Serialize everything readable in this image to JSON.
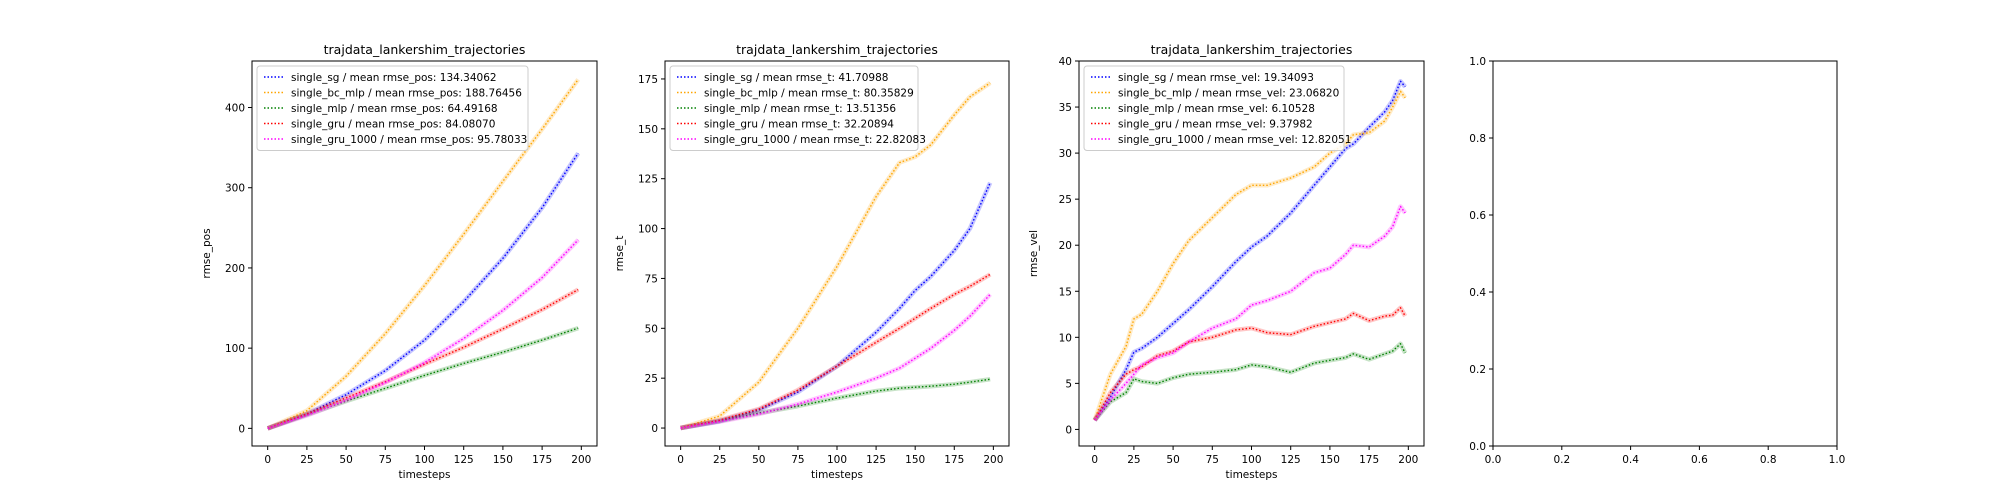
{
  "figure": {
    "panels": [
      {
        "title": "trajdata_lankershim_trajectories",
        "xlabel": "timesteps",
        "ylabel": "rmse_pos",
        "xlim": [
          -10,
          210
        ],
        "ylim": [
          -22,
          458
        ],
        "xticks": [
          0,
          25,
          50,
          75,
          100,
          125,
          150,
          175,
          200
        ],
        "yticks": [
          0,
          100,
          200,
          300,
          400
        ]
      },
      {
        "title": "trajdata_lankershim_trajectories",
        "xlabel": "timesteps",
        "ylabel": "rmse_t",
        "xlim": [
          -10,
          210
        ],
        "ylim": [
          -9,
          184
        ],
        "xticks": [
          0,
          25,
          50,
          75,
          100,
          125,
          150,
          175,
          200
        ],
        "yticks": [
          0,
          25,
          50,
          75,
          100,
          125,
          150,
          175
        ]
      },
      {
        "title": "trajdata_lankershim_trajectories",
        "xlabel": "timesteps",
        "ylabel": "rmse_vel",
        "xlim": [
          -10,
          210
        ],
        "ylim": [
          -1.8,
          40
        ],
        "xticks": [
          0,
          25,
          50,
          75,
          100,
          125,
          150,
          175,
          200
        ],
        "yticks": [
          0,
          5,
          10,
          15,
          20,
          25,
          30,
          35,
          40
        ]
      },
      {
        "title": "",
        "xlabel": "",
        "ylabel": "",
        "xlim": [
          0,
          1
        ],
        "ylim": [
          0,
          1
        ],
        "xticks": [
          "0.0",
          "0.2",
          "0.4",
          "0.6",
          "0.8",
          "1.0"
        ],
        "yticks": [
          "0.0",
          "0.2",
          "0.4",
          "0.6",
          "0.8",
          "1.0"
        ]
      }
    ]
  },
  "chart_data": [
    {
      "type": "line",
      "title": "trajdata_lankershim_trajectories",
      "xlabel": "timesteps",
      "ylabel": "rmse_pos",
      "legend_position": "top-left",
      "grid": false,
      "x": [
        0,
        25,
        50,
        75,
        100,
        125,
        150,
        175,
        198
      ],
      "series": [
        {
          "name": "single_sg / mean rmse_pos: 134.34062",
          "color": "#0000ff",
          "values": [
            0,
            18,
            42,
            72,
            110,
            158,
            212,
            275,
            343
          ]
        },
        {
          "name": "single_bc_mlp / mean rmse_pos: 188.76456",
          "color": "#ffa500",
          "values": [
            0,
            22,
            65,
            118,
            178,
            242,
            308,
            373,
            435
          ]
        },
        {
          "name": "single_mlp / mean rmse_pos: 64.49168",
          "color": "#008000",
          "values": [
            0,
            17,
            34,
            50,
            66,
            81,
            95,
            110,
            125
          ]
        },
        {
          "name": "single_gru / mean rmse_pos: 84.08070",
          "color": "#ff0000",
          "values": [
            0,
            18,
            38,
            58,
            80,
            101,
            124,
            148,
            173
          ]
        },
        {
          "name": "single_gru_1000 / mean rmse_pos: 95.78033",
          "color": "#ff00ff",
          "values": [
            0,
            16,
            35,
            57,
            82,
            112,
            147,
            188,
            235
          ]
        }
      ]
    },
    {
      "type": "line",
      "title": "trajdata_lankershim_trajectories",
      "xlabel": "timesteps",
      "ylabel": "rmse_t",
      "legend_position": "top-left",
      "grid": false,
      "x": [
        0,
        25,
        50,
        75,
        100,
        125,
        140,
        150,
        160,
        175,
        185,
        198
      ],
      "series": [
        {
          "name": "single_sg / mean rmse_t: 41.70988",
          "color": "#0000ff",
          "values": [
            0,
            3.5,
            9,
            18,
            31,
            48,
            60,
            69,
            76,
            89,
            100,
            123
          ]
        },
        {
          "name": "single_bc_mlp / mean rmse_t: 80.35829",
          "color": "#ffa500",
          "values": [
            0,
            6,
            23,
            50,
            81,
            116,
            133,
            136,
            142,
            157,
            166,
            173
          ]
        },
        {
          "name": "single_mlp / mean rmse_t: 13.51356",
          "color": "#008000",
          "values": [
            0,
            3.5,
            7.5,
            11,
            15,
            18.5,
            20,
            20.5,
            21,
            22,
            23,
            24.5
          ]
        },
        {
          "name": "single_gru / mean rmse_t: 32.20894",
          "color": "#ff0000",
          "values": [
            0,
            4,
            9.5,
            19,
            31,
            43,
            50,
            55,
            60,
            67,
            71,
            77
          ]
        },
        {
          "name": "single_gru_1000 / mean rmse_t: 22.82083",
          "color": "#ff00ff",
          "values": [
            0,
            3.2,
            7,
            12,
            18,
            25,
            30,
            35,
            40,
            49,
            56,
            67
          ]
        }
      ]
    },
    {
      "type": "line",
      "title": "trajdata_lankershim_trajectories",
      "xlabel": "timesteps",
      "ylabel": "rmse_vel",
      "legend_position": "top-left",
      "grid": false,
      "x": [
        0,
        10,
        20,
        25,
        30,
        40,
        50,
        60,
        75,
        90,
        100,
        110,
        125,
        140,
        150,
        160,
        165,
        175,
        185,
        190,
        195,
        198
      ],
      "series": [
        {
          "name": "single_sg / mean rmse_vel: 19.34093",
          "color": "#0000ff",
          "values": [
            1,
            3.5,
            6.5,
            8.4,
            8.8,
            10,
            11.5,
            13,
            15.5,
            18.2,
            19.8,
            21,
            23.5,
            26.5,
            28.5,
            30.5,
            31,
            32.8,
            34.5,
            35.7,
            37.8,
            37.2
          ]
        },
        {
          "name": "single_bc_mlp / mean rmse_vel: 23.06820",
          "color": "#ffa500",
          "values": [
            1,
            6,
            9,
            12,
            12.5,
            15,
            18,
            20.5,
            23,
            25.5,
            26.5,
            26.5,
            27.3,
            28.5,
            30,
            31,
            32,
            32.2,
            33.5,
            35,
            36.7,
            36
          ]
        },
        {
          "name": "single_mlp / mean rmse_vel: 6.10528",
          "color": "#008000",
          "values": [
            1,
            3,
            4,
            5.5,
            5.2,
            5,
            5.6,
            6,
            6.2,
            6.5,
            7,
            6.8,
            6.2,
            7.2,
            7.5,
            7.8,
            8.2,
            7.6,
            8.2,
            8.5,
            9.3,
            8.3
          ]
        },
        {
          "name": "single_gru / mean rmse_vel: 9.37982",
          "color": "#ff0000",
          "values": [
            1,
            4,
            6,
            6.5,
            6.8,
            8,
            8.5,
            9.5,
            10,
            10.8,
            11,
            10.5,
            10.3,
            11.2,
            11.6,
            12,
            12.6,
            11.8,
            12.3,
            12.4,
            13.2,
            12.3
          ]
        },
        {
          "name": "single_gru_1000 / mean rmse_vel: 12.82051",
          "color": "#ff00ff",
          "values": [
            1,
            3.2,
            5,
            6,
            7,
            7.8,
            8.3,
            9.5,
            11,
            12,
            13.5,
            14,
            15,
            17,
            17.5,
            19,
            20,
            19.8,
            21,
            22,
            24.2,
            23.5
          ]
        }
      ]
    },
    {
      "type": "line",
      "title": "",
      "xlabel": "",
      "ylabel": "",
      "xlim": [
        0,
        1
      ],
      "ylim": [
        0,
        1
      ],
      "series": []
    }
  ]
}
